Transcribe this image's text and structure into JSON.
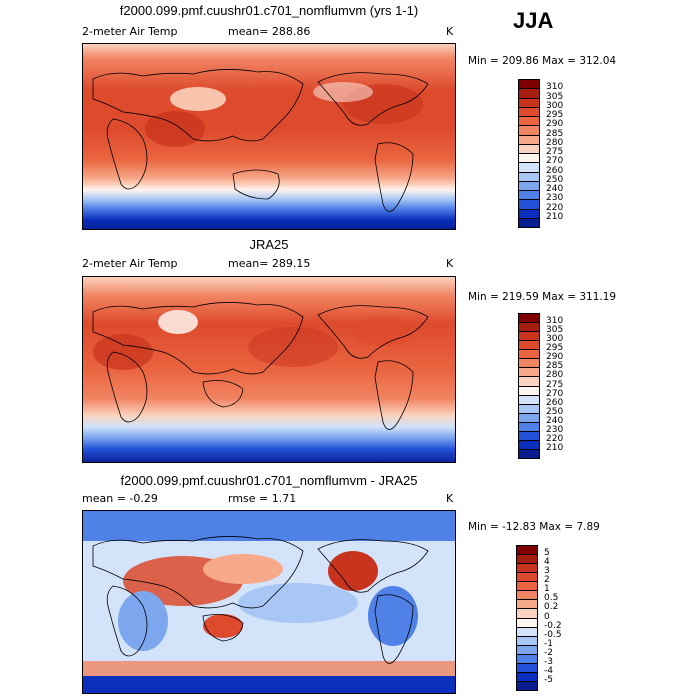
{
  "season": "JJA",
  "unit": "K",
  "panels": [
    {
      "id": "model",
      "title": "f2000.099.pmf.cuushr01.c701_nomflumvm (yrs 1-1)",
      "variable": "2-meter Air Temp",
      "stat_text": "mean= 288.86",
      "unit": "K",
      "minmax": "Min = 209.86 Max = 312.04",
      "colorbar_labels": [
        "310",
        "305",
        "300",
        "295",
        "290",
        "285",
        "280",
        "275",
        "270",
        "260",
        "250",
        "240",
        "230",
        "220",
        "210"
      ],
      "colors": [
        "#7f0000",
        "#a51d0e",
        "#c8331d",
        "#dd4a2c",
        "#ea6540",
        "#f18462",
        "#f6aa8a",
        "#fbd2bd",
        "#fff4ee",
        "#d2e3fa",
        "#a8c7f5",
        "#7ca6ee",
        "#4f81e6",
        "#2352d8",
        "#0b2fbd",
        "#081d8f"
      ]
    },
    {
      "id": "obs",
      "title": "JRA25",
      "variable": "2-meter Air Temp",
      "stat_text": "mean= 289.15",
      "unit": "K",
      "minmax": "Min = 219.59 Max = 311.19",
      "colorbar_labels": [
        "310",
        "305",
        "300",
        "295",
        "290",
        "285",
        "280",
        "275",
        "270",
        "260",
        "250",
        "240",
        "230",
        "220",
        "210"
      ],
      "colors": [
        "#7f0000",
        "#a51d0e",
        "#c8331d",
        "#dd4a2c",
        "#ea6540",
        "#f18462",
        "#f6aa8a",
        "#fbd2bd",
        "#fff4ee",
        "#d2e3fa",
        "#a8c7f5",
        "#7ca6ee",
        "#4f81e6",
        "#2352d8",
        "#0b2fbd",
        "#081d8f"
      ]
    },
    {
      "id": "diff",
      "title": "f2000.099.pmf.cuushr01.c701_nomflumvm - JRA25",
      "mean_text": "mean =  -0.29",
      "rmse_text": "rmse =   1.71",
      "unit": "K",
      "minmax": "Min = -12.83 Max =   7.89",
      "colorbar_labels": [
        "5",
        "4",
        "3",
        "2",
        "1",
        "0.5",
        "0.2",
        "0",
        "-0.2",
        "-0.5",
        "-1",
        "-2",
        "-3",
        "-4",
        "-5"
      ],
      "colors": [
        "#7f0000",
        "#a51d0e",
        "#c8331d",
        "#dd4a2c",
        "#ea6540",
        "#f18462",
        "#f6aa8a",
        "#fbd2bd",
        "#fff4ee",
        "#d2e3fa",
        "#a8c7f5",
        "#7ca6ee",
        "#4f81e6",
        "#2352d8",
        "#0b2fbd",
        "#081d8f"
      ]
    }
  ]
}
